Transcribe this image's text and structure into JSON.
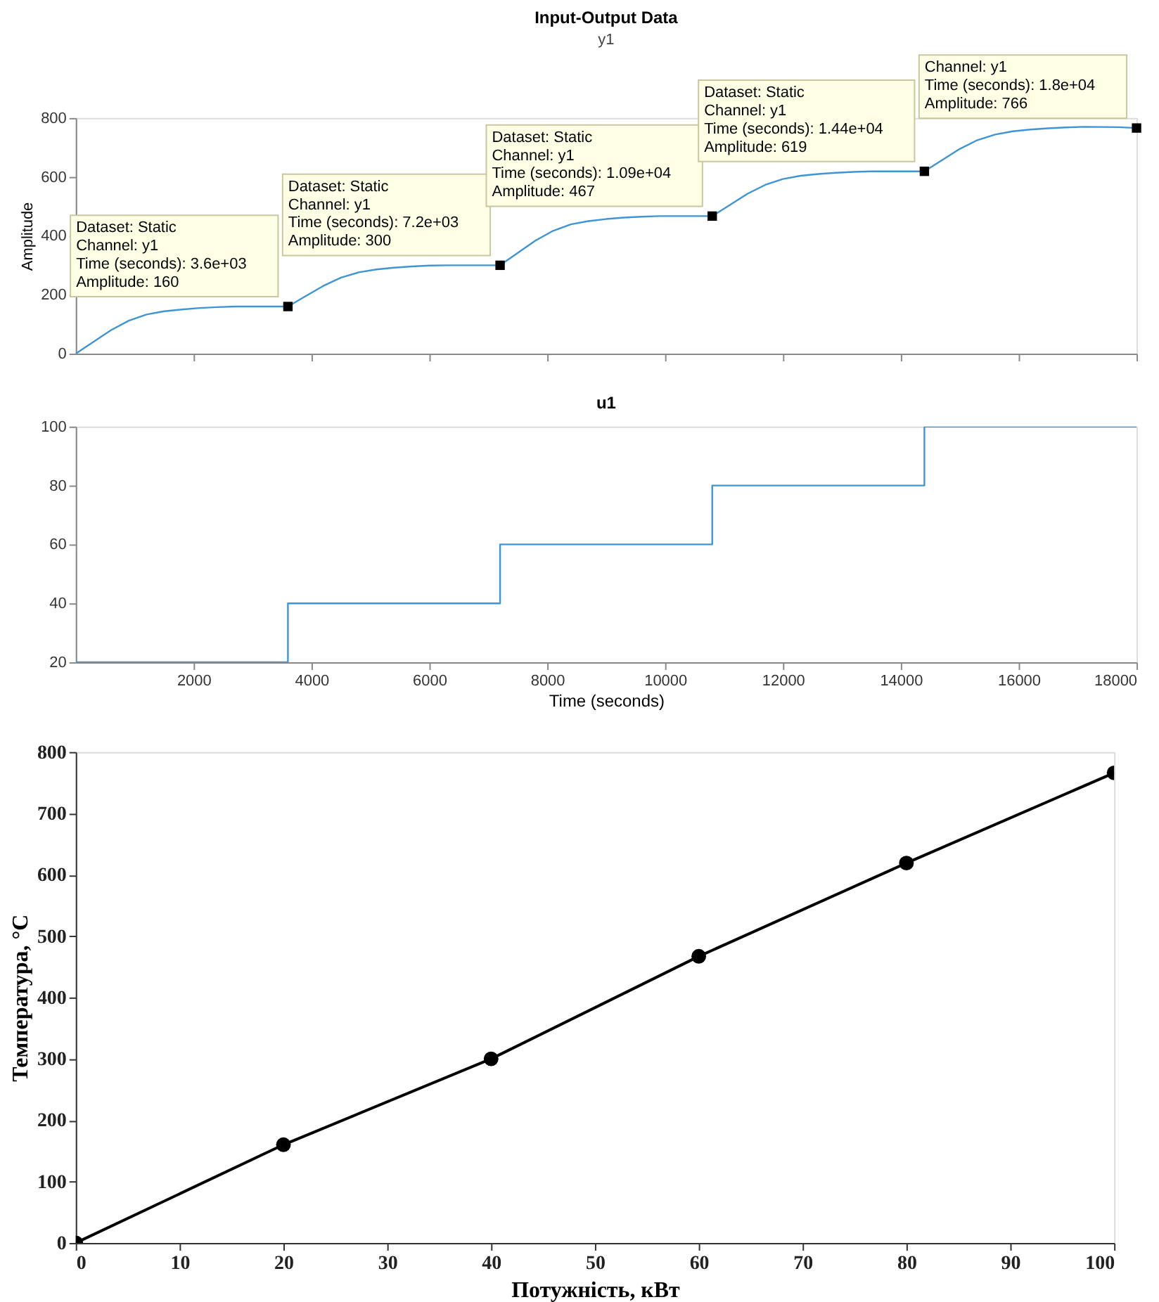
{
  "chart_data": [
    {
      "type": "line",
      "title": "Input-Output Data",
      "subtitle": "y1",
      "ylabel": "Amplitude",
      "xlim": [
        0,
        18000
      ],
      "xticks": [
        2000,
        4000,
        6000,
        8000,
        10000,
        12000,
        14000,
        16000,
        18000
      ],
      "ylim": [
        0,
        800
      ],
      "yticks": [
        0,
        200,
        400,
        600,
        800
      ],
      "tick_labels": "y",
      "grid": false,
      "line_style": "solid",
      "series": [
        {
          "type": "line",
          "color": "#3f95d4",
          "x": [
            0,
            300,
            600,
            900,
            1200,
            1500,
            1800,
            2100,
            2400,
            2700,
            3600,
            3900,
            4200,
            4500,
            4800,
            5100,
            5400,
            5700,
            6000,
            6300,
            7200,
            7500,
            7800,
            8100,
            8400,
            8700,
            9000,
            9300,
            9600,
            9900,
            10800,
            11100,
            11400,
            11700,
            12000,
            12300,
            12600,
            12900,
            13200,
            13500,
            14400,
            14700,
            15000,
            15300,
            15600,
            15900,
            16200,
            16500,
            16800,
            17100,
            17700,
            18000
          ],
          "values": [
            0,
            40,
            80,
            112,
            133,
            144,
            150,
            155,
            158,
            160,
            160,
            195,
            230,
            258,
            276,
            286,
            292,
            296,
            299,
            300,
            300,
            342,
            384,
            417,
            439,
            450,
            457,
            462,
            465,
            467,
            467,
            505,
            543,
            573,
            593,
            604,
            610,
            614,
            617,
            619,
            619,
            657,
            695,
            725,
            744,
            755,
            761,
            765,
            768,
            770,
            769,
            766
          ]
        },
        {
          "type": "scatter",
          "marker": "square",
          "color": "#000000",
          "x": [
            3600,
            7200,
            10800,
            14400,
            18000
          ],
          "values": [
            160,
            300,
            467,
            619,
            766
          ]
        }
      ],
      "annotations": [
        {
          "text": "Dataset: Static\nChannel: y1\nTime (seconds): 3.6e+03\nAmplitude: 160",
          "x": 3600,
          "y": 160
        },
        {
          "text": "Dataset: Static\nChannel: y1\nTime (seconds): 7.2e+03\nAmplitude: 300",
          "x": 7200,
          "y": 300
        },
        {
          "text": "Dataset: Static\nChannel: y1\nTime (seconds): 1.09e+04\nAmplitude: 467",
          "x": 10800,
          "y": 467
        },
        {
          "text": "Dataset: Static\nChannel: y1\nTime (seconds): 1.44e+04\nAmplitude: 619",
          "x": 14400,
          "y": 619
        },
        {
          "text": "Channel: y1\nTime (seconds): 1.8e+04\nAmplitude: 766",
          "x": 18000,
          "y": 766
        }
      ]
    },
    {
      "type": "step",
      "title": "u1",
      "xlabel": "Time (seconds)",
      "xlim": [
        0,
        18000
      ],
      "xticks": [
        2000,
        4000,
        6000,
        8000,
        10000,
        12000,
        14000,
        16000,
        18000
      ],
      "ylim": [
        20,
        100
      ],
      "yticks": [
        20,
        40,
        60,
        80,
        100
      ],
      "grid": false,
      "line_style": "solid",
      "series": [
        {
          "color": "#3f95d4",
          "x": [
            0,
            3600,
            7200,
            10800,
            14400,
            18000
          ],
          "values": [
            20,
            40,
            60,
            80,
            100,
            100
          ]
        }
      ]
    },
    {
      "type": "line",
      "xlabel": "Потужність, кВт",
      "ylabel": "Температура, °C",
      "xlim": [
        0,
        100
      ],
      "xticks": [
        0,
        10,
        20,
        30,
        40,
        50,
        60,
        70,
        80,
        90,
        100
      ],
      "ylim": [
        0,
        800
      ],
      "yticks": [
        0,
        100,
        200,
        300,
        400,
        500,
        600,
        700,
        800
      ],
      "grid": false,
      "marker": "circle",
      "line_style": "solid",
      "series": [
        {
          "color": "#000000",
          "x": [
            0,
            20,
            40,
            60,
            80,
            100
          ],
          "values": [
            0,
            160,
            300,
            467,
            619,
            766
          ]
        }
      ]
    }
  ]
}
